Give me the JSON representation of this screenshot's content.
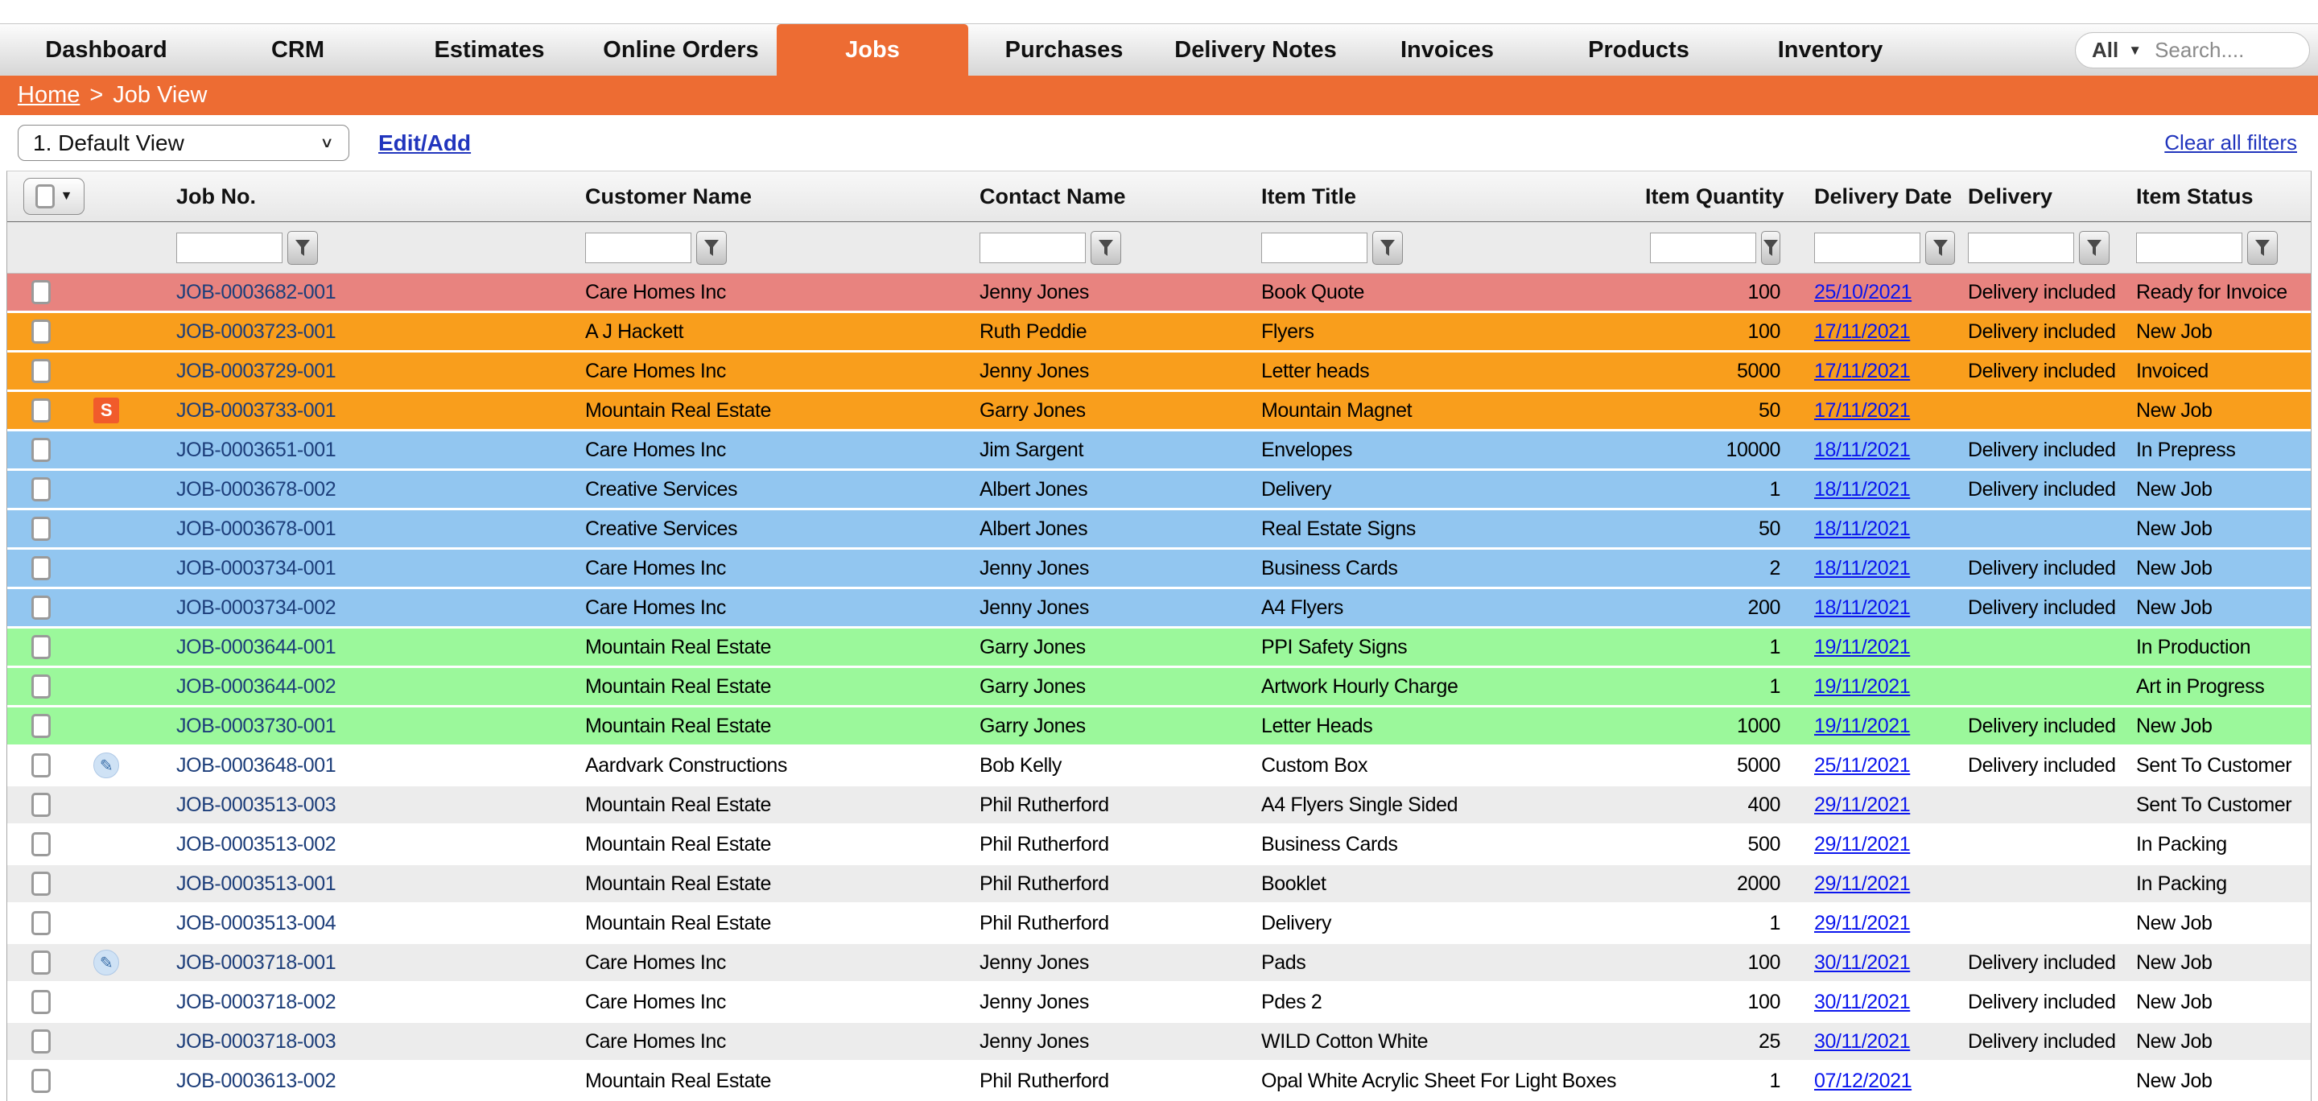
{
  "nav": {
    "tabs": [
      {
        "label": "Dashboard",
        "active": false
      },
      {
        "label": "CRM",
        "active": false
      },
      {
        "label": "Estimates",
        "active": false
      },
      {
        "label": "Online Orders",
        "active": false
      },
      {
        "label": "Jobs",
        "active": true
      },
      {
        "label": "Purchases",
        "active": false
      },
      {
        "label": "Delivery Notes",
        "active": false
      },
      {
        "label": "Invoices",
        "active": false
      },
      {
        "label": "Products",
        "active": false
      },
      {
        "label": "Inventory",
        "active": false
      }
    ],
    "search": {
      "filter_label": "All",
      "placeholder": "Search...."
    }
  },
  "breadcrumb": {
    "home": "Home",
    "separator": ">",
    "current": "Job View"
  },
  "toolbar": {
    "view_selector_value": "1. Default View",
    "edit_add_label": "Edit/Add",
    "clear_filters_label": "Clear all filters"
  },
  "icons": {
    "s_badge_label": "S",
    "pencil_glyph": "✎"
  },
  "colors": {
    "accent_orange": "#ED6C33",
    "row_salmon": "#E8837F",
    "row_orange": "#F99E1C",
    "row_blue": "#92C6F0",
    "row_green": "#9BF89B",
    "row_grey": "#ECECEC",
    "job_link": "#1D3E7A",
    "date_link": "#0b16ee"
  },
  "table": {
    "columns": [
      "Job No.",
      "Customer Name",
      "Contact Name",
      "Item Title",
      "Item Quantity",
      "Delivery Date",
      "Delivery",
      "Item Status"
    ],
    "rows": [
      {
        "color": "salmon",
        "icon": "",
        "job_no": "JOB-0003682-001",
        "customer": "Care Homes Inc",
        "contact": "Jenny Jones",
        "item_title": "Book Quote",
        "quantity": "100",
        "delivery_date": "25/10/2021",
        "delivery": "Delivery included",
        "status": "Ready for Invoice"
      },
      {
        "color": "orange",
        "icon": "",
        "job_no": "JOB-0003723-001",
        "customer": "A J Hackett",
        "contact": "Ruth Peddie",
        "item_title": "Flyers",
        "quantity": "100",
        "delivery_date": "17/11/2021",
        "delivery": "Delivery included",
        "status": "New Job"
      },
      {
        "color": "orange",
        "icon": "",
        "job_no": "JOB-0003729-001",
        "customer": "Care Homes Inc",
        "contact": "Jenny Jones",
        "item_title": "Letter heads",
        "quantity": "5000",
        "delivery_date": "17/11/2021",
        "delivery": "Delivery included",
        "status": "Invoiced"
      },
      {
        "color": "orange",
        "icon": "s-badge",
        "job_no": "JOB-0003733-001",
        "customer": "Mountain Real Estate",
        "contact": "Garry Jones",
        "item_title": "Mountain Magnet",
        "quantity": "50",
        "delivery_date": "17/11/2021",
        "delivery": "",
        "status": "New Job"
      },
      {
        "color": "blue",
        "icon": "",
        "job_no": "JOB-0003651-001",
        "customer": "Care Homes Inc",
        "contact": "Jim Sargent",
        "item_title": "Envelopes",
        "quantity": "10000",
        "delivery_date": "18/11/2021",
        "delivery": "Delivery included",
        "status": "In Prepress"
      },
      {
        "color": "blue",
        "icon": "",
        "job_no": "JOB-0003678-002",
        "customer": "Creative Services",
        "contact": "Albert Jones",
        "item_title": "Delivery",
        "quantity": "1",
        "delivery_date": "18/11/2021",
        "delivery": "Delivery included",
        "status": "New Job"
      },
      {
        "color": "blue",
        "icon": "",
        "job_no": "JOB-0003678-001",
        "customer": "Creative Services",
        "contact": "Albert Jones",
        "item_title": "Real Estate Signs",
        "quantity": "50",
        "delivery_date": "18/11/2021",
        "delivery": "",
        "status": "New Job"
      },
      {
        "color": "blue",
        "icon": "",
        "job_no": "JOB-0003734-001",
        "customer": "Care Homes Inc",
        "contact": "Jenny Jones",
        "item_title": "Business Cards",
        "quantity": "2",
        "delivery_date": "18/11/2021",
        "delivery": "Delivery included",
        "status": "New Job"
      },
      {
        "color": "blue",
        "icon": "",
        "job_no": "JOB-0003734-002",
        "customer": "Care Homes Inc",
        "contact": "Jenny Jones",
        "item_title": "A4 Flyers",
        "quantity": "200",
        "delivery_date": "18/11/2021",
        "delivery": "Delivery included",
        "status": "New Job"
      },
      {
        "color": "green",
        "icon": "",
        "job_no": "JOB-0003644-001",
        "customer": "Mountain Real Estate",
        "contact": "Garry Jones",
        "item_title": "PPI Safety Signs",
        "quantity": "1",
        "delivery_date": "19/11/2021",
        "delivery": "",
        "status": "In Production"
      },
      {
        "color": "green",
        "icon": "",
        "job_no": "JOB-0003644-002",
        "customer": "Mountain Real Estate",
        "contact": "Garry Jones",
        "item_title": "Artwork Hourly Charge",
        "quantity": "1",
        "delivery_date": "19/11/2021",
        "delivery": "",
        "status": "Art in Progress"
      },
      {
        "color": "green",
        "icon": "",
        "job_no": "JOB-0003730-001",
        "customer": "Mountain Real Estate",
        "contact": "Garry Jones",
        "item_title": "Letter Heads",
        "quantity": "1000",
        "delivery_date": "19/11/2021",
        "delivery": "Delivery included",
        "status": "New Job"
      },
      {
        "color": "white",
        "icon": "pencil",
        "job_no": "JOB-0003648-001",
        "customer": "Aardvark Constructions",
        "contact": "Bob Kelly",
        "item_title": "Custom Box",
        "quantity": "5000",
        "delivery_date": "25/11/2021",
        "delivery": "Delivery included",
        "status": "Sent To Customer"
      },
      {
        "color": "grey",
        "icon": "",
        "job_no": "JOB-0003513-003",
        "customer": "Mountain Real Estate",
        "contact": "Phil Rutherford",
        "item_title": "A4 Flyers Single Sided",
        "quantity": "400",
        "delivery_date": "29/11/2021",
        "delivery": "",
        "status": "Sent To Customer"
      },
      {
        "color": "white",
        "icon": "",
        "job_no": "JOB-0003513-002",
        "customer": "Mountain Real Estate",
        "contact": "Phil Rutherford",
        "item_title": "Business Cards",
        "quantity": "500",
        "delivery_date": "29/11/2021",
        "delivery": "",
        "status": "In Packing"
      },
      {
        "color": "grey",
        "icon": "",
        "job_no": "JOB-0003513-001",
        "customer": "Mountain Real Estate",
        "contact": "Phil Rutherford",
        "item_title": "Booklet",
        "quantity": "2000",
        "delivery_date": "29/11/2021",
        "delivery": "",
        "status": "In Packing"
      },
      {
        "color": "white",
        "icon": "",
        "job_no": "JOB-0003513-004",
        "customer": "Mountain Real Estate",
        "contact": "Phil Rutherford",
        "item_title": "Delivery",
        "quantity": "1",
        "delivery_date": "29/11/2021",
        "delivery": "",
        "status": "New Job"
      },
      {
        "color": "grey",
        "icon": "pencil",
        "job_no": "JOB-0003718-001",
        "customer": "Care Homes Inc",
        "contact": "Jenny Jones",
        "item_title": "Pads",
        "quantity": "100",
        "delivery_date": "30/11/2021",
        "delivery": "Delivery included",
        "status": "New Job"
      },
      {
        "color": "white",
        "icon": "",
        "job_no": "JOB-0003718-002",
        "customer": "Care Homes Inc",
        "contact": "Jenny Jones",
        "item_title": "Pdes 2",
        "quantity": "100",
        "delivery_date": "30/11/2021",
        "delivery": "Delivery included",
        "status": "New Job"
      },
      {
        "color": "grey",
        "icon": "",
        "job_no": "JOB-0003718-003",
        "customer": "Care Homes Inc",
        "contact": "Jenny Jones",
        "item_title": "WILD Cotton White",
        "quantity": "25",
        "delivery_date": "30/11/2021",
        "delivery": "Delivery included",
        "status": "New Job"
      },
      {
        "color": "white",
        "icon": "",
        "job_no": "JOB-0003613-002",
        "customer": "Mountain Real Estate",
        "contact": "Phil Rutherford",
        "item_title": "Opal White Acrylic Sheet For Light Boxes",
        "quantity": "1",
        "delivery_date": "07/12/2021",
        "delivery": "",
        "status": "New Job"
      }
    ]
  }
}
